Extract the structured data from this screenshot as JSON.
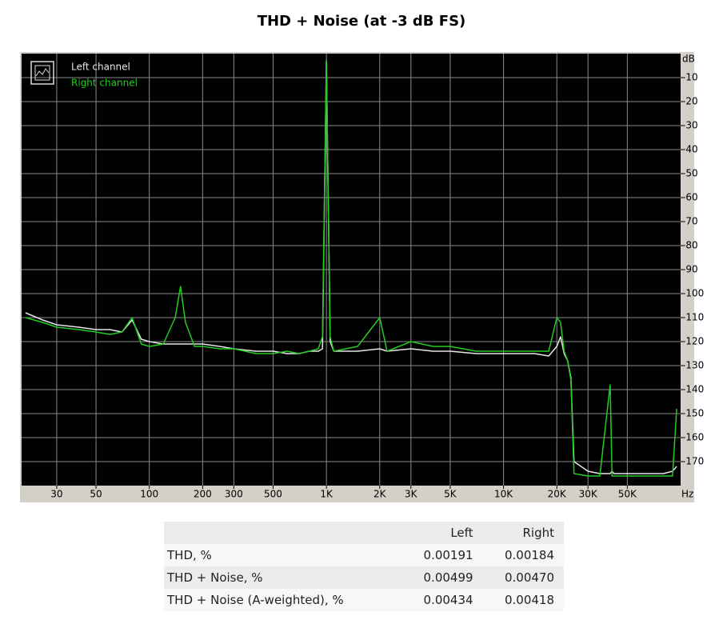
{
  "chart_data": {
    "type": "line",
    "title": "THD + Noise (at -3 dB FS)",
    "x_unit": "Hz",
    "y_unit": "dB",
    "xscale": "log",
    "xlim": [
      19,
      100000
    ],
    "ylim": [
      -180,
      0
    ],
    "xticks": [
      30,
      50,
      100,
      200,
      300,
      500,
      {
        "value": 1000,
        "label": "1K"
      },
      {
        "value": 2000,
        "label": "2K"
      },
      {
        "value": 3000,
        "label": "3K"
      },
      {
        "value": 5000,
        "label": "5K"
      },
      {
        "value": 10000,
        "label": "10K"
      },
      {
        "value": 20000,
        "label": "20K"
      },
      {
        "value": 30000,
        "label": "30K"
      },
      {
        "value": 50000,
        "label": "50K"
      }
    ],
    "yticks": [
      -10,
      -20,
      -30,
      -40,
      -50,
      -60,
      -70,
      -80,
      -90,
      -100,
      -110,
      -120,
      -130,
      -140,
      -150,
      -160,
      -170
    ],
    "grid": true,
    "grid_color": "#8a8a8a",
    "background": "#000000",
    "legend": "upper left",
    "x": [
      20,
      25,
      30,
      40,
      50,
      60,
      70,
      80,
      90,
      100,
      120,
      140,
      150,
      160,
      180,
      200,
      250,
      300,
      400,
      500,
      600,
      700,
      800,
      900,
      950,
      1000,
      1050,
      1100,
      1500,
      2000,
      2200,
      3000,
      4000,
      5000,
      7000,
      10000,
      15000,
      18000,
      20000,
      21000,
      22000,
      23000,
      24000,
      25000,
      30000,
      35000,
      40000,
      41000,
      42000,
      50000,
      60000,
      80000,
      90000,
      95000
    ],
    "series": [
      {
        "name": "Left channel",
        "color": "#e6e6e6",
        "values": [
          -108,
          -111,
          -113,
          -114,
          -115,
          -115,
          -116,
          -111,
          -119,
          -120,
          -121,
          -121,
          -121,
          -121,
          -121,
          -121,
          -122,
          -123,
          -124,
          -124,
          -125,
          -125,
          -124,
          -124,
          -123,
          -3,
          -120,
          -124,
          -124,
          -123,
          -124,
          -123,
          -124,
          -124,
          -125,
          -125,
          -125,
          -126,
          -122,
          -118,
          -125,
          -128,
          -135,
          -170,
          -174,
          -175,
          -175,
          -174,
          -175,
          -175,
          -175,
          -175,
          -174,
          -172
        ]
      },
      {
        "name": "Right channel",
        "color": "#22cc22",
        "values": [
          -110,
          -112,
          -114,
          -115,
          -116,
          -117,
          -116,
          -110,
          -121,
          -122,
          -121,
          -110,
          -97,
          -112,
          -122,
          -122,
          -123,
          -123,
          -125,
          -125,
          -124,
          -125,
          -124,
          -123,
          -118,
          -3,
          -118,
          -124,
          -122,
          -110,
          -124,
          -120,
          -122,
          -122,
          -124,
          -124,
          -124,
          -124,
          -110,
          -112,
          -124,
          -128,
          -136,
          -175,
          -176,
          -176,
          -138,
          -176,
          -176,
          -176,
          -176,
          -176,
          -176,
          -148
        ]
      }
    ]
  },
  "table": {
    "columns": [
      "Left",
      "Right"
    ],
    "rows": [
      {
        "label": "THD, %",
        "values": [
          "0.00191",
          "0.00184"
        ]
      },
      {
        "label": "THD + Noise, %",
        "values": [
          "0.00499",
          "0.00470"
        ]
      },
      {
        "label": "THD + Noise (A-weighted), %",
        "values": [
          "0.00434",
          "0.00418"
        ]
      }
    ]
  }
}
